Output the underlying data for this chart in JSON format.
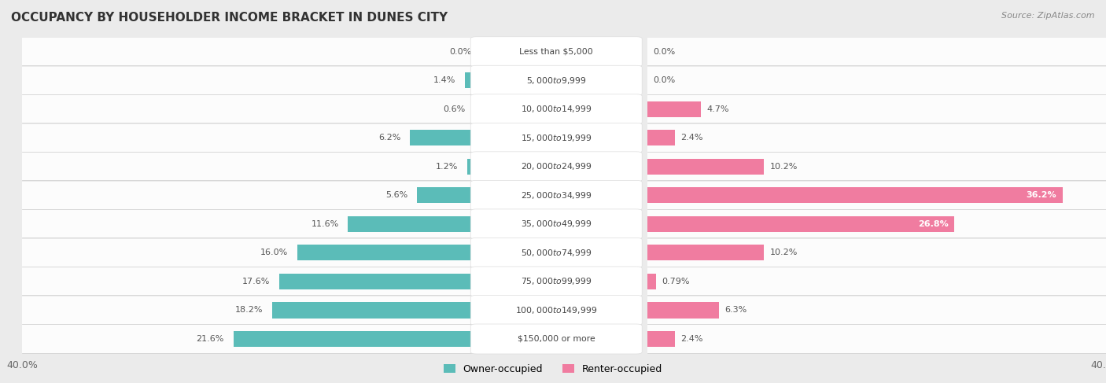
{
  "title": "OCCUPANCY BY HOUSEHOLDER INCOME BRACKET IN DUNES CITY",
  "source": "Source: ZipAtlas.com",
  "categories": [
    "Less than $5,000",
    "$5,000 to $9,999",
    "$10,000 to $14,999",
    "$15,000 to $19,999",
    "$20,000 to $24,999",
    "$25,000 to $34,999",
    "$35,000 to $49,999",
    "$50,000 to $74,999",
    "$75,000 to $99,999",
    "$100,000 to $149,999",
    "$150,000 or more"
  ],
  "owner_values": [
    0.0,
    1.4,
    0.6,
    6.2,
    1.2,
    5.6,
    11.6,
    16.0,
    17.6,
    18.2,
    21.6
  ],
  "renter_values": [
    0.0,
    0.0,
    4.7,
    2.4,
    10.2,
    36.2,
    26.8,
    10.2,
    0.79,
    6.3,
    2.4
  ],
  "owner_color": "#5bbcb8",
  "renter_color": "#f07ca0",
  "background_color": "#ebebeb",
  "max_value": 40.0,
  "legend_owner": "Owner-occupied",
  "legend_renter": "Renter-occupied",
  "owner_label_fmt": [
    "0.0%",
    "1.4%",
    "0.6%",
    "6.2%",
    "1.2%",
    "5.6%",
    "11.6%",
    "16.0%",
    "17.6%",
    "18.2%",
    "21.6%"
  ],
  "renter_label_fmt": [
    "0.0%",
    "0.0%",
    "4.7%",
    "2.4%",
    "10.2%",
    "36.2%",
    "26.8%",
    "10.2%",
    "0.79%",
    "6.3%",
    "2.4%"
  ]
}
